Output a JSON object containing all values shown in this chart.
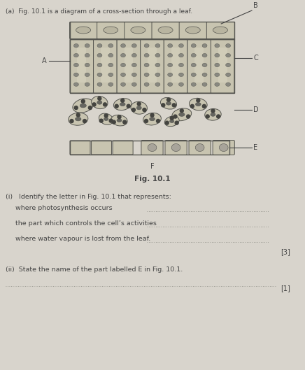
{
  "bg_color": "#c8c4bc",
  "page_color": "#d8d4cc",
  "title": "(a)  Fig. 10.1 is a diagram of a cross-section through a leaf.",
  "fig_caption": "Fig. 10.1",
  "q_i_header": "(i)   Identify the letter in Fig. 10.1 that represents:",
  "q1": "where photosynthesis occurs",
  "q2": "the part which controls the cell’s activities",
  "q3": "where water vapour is lost from the leaf.",
  "mark3": "[3]",
  "q_ii": "(ii)  State the name of the part labelled E in Fig. 10.1.",
  "mark1": "[1]",
  "cell_color": "#c8c4b0",
  "cell_edge": "#555550",
  "dot_color": "#444440",
  "line_color": "#555550",
  "text_color": "#444444",
  "dot_line_color": "#888880"
}
